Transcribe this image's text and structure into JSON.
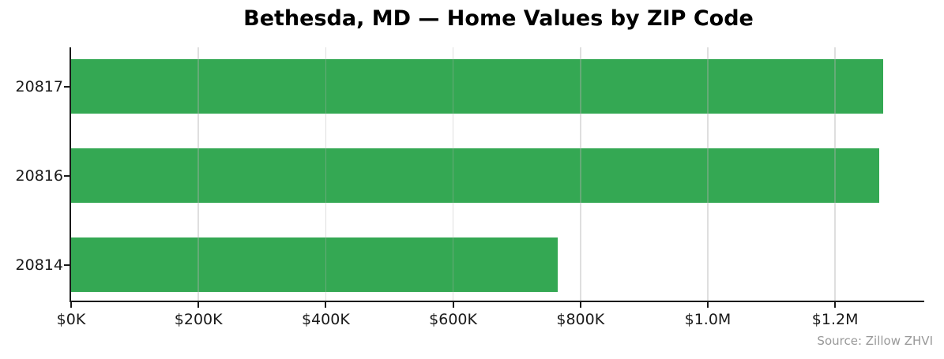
{
  "header": {
    "title": "Bethesda, MD — Home Values by ZIP Code"
  },
  "footer": {
    "source_note": "Source: Zillow ZHVI"
  },
  "colors": {
    "bar": "#34a853",
    "axis": "#1a1a1a",
    "grid": "#b0b0b0",
    "title": "#000000",
    "tick_label": "#1a1a1a",
    "source_note": "#999999"
  },
  "chart_data": {
    "type": "bar",
    "orientation": "horizontal",
    "title": "Bethesda, MD — Home Values by ZIP Code",
    "categories": [
      "20817",
      "20816",
      "20814"
    ],
    "values": [
      1275000,
      1269000,
      764000
    ],
    "xlabel": "",
    "ylabel": "",
    "xlim": [
      0,
      1340000
    ],
    "xticks": {
      "values": [
        0,
        200000,
        400000,
        600000,
        800000,
        1000000,
        1200000
      ],
      "labels": [
        "$0K",
        "$200K",
        "$400K",
        "$600K",
        "$800K",
        "$1.0M",
        "$1.2M"
      ]
    },
    "grid": "vertical gridlines at x ticks, light gray, drawn over bars",
    "legend": false,
    "annotations": [
      "Source: Zillow ZHVI"
    ]
  }
}
